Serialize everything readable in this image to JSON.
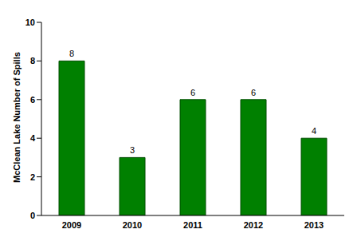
{
  "chart_data": {
    "type": "bar",
    "ylabel": "McClean Lake Number of Spills",
    "categories": [
      "2009",
      "2010",
      "2011",
      "2012",
      "2013"
    ],
    "values": [
      8,
      3,
      6,
      6,
      4
    ],
    "color": "#008000",
    "ylim": [
      0,
      10
    ],
    "yticks": [
      0,
      2,
      4,
      6,
      8,
      10
    ],
    "grid": false,
    "data_labels": true
  }
}
